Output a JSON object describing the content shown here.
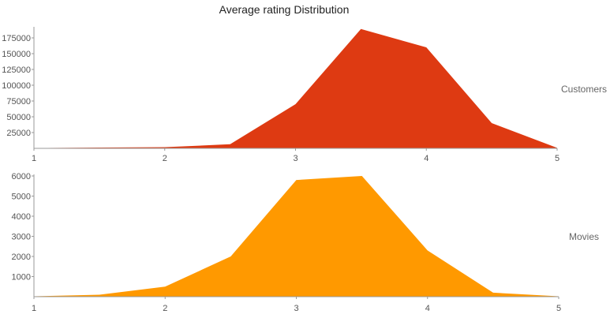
{
  "title": "Average rating Distribution",
  "chart_data": [
    {
      "type": "area",
      "name": "Customers",
      "color": "#de3a12",
      "x": [
        1,
        1.5,
        2,
        2.5,
        3,
        3.5,
        4,
        4.5,
        5
      ],
      "values": [
        400,
        1200,
        1800,
        6500,
        70000,
        189000,
        160000,
        40000,
        800
      ],
      "xlim": [
        1,
        5
      ],
      "ylim": [
        0,
        190000
      ],
      "xticks": [
        1,
        2,
        3,
        4,
        5
      ],
      "yticks": [
        25000,
        50000,
        75000,
        100000,
        125000,
        150000,
        175000
      ],
      "grid": false
    },
    {
      "type": "area",
      "name": "Movies",
      "color": "#ff9900",
      "x": [
        1,
        1.5,
        2,
        2.5,
        3,
        3.5,
        4,
        4.5,
        5
      ],
      "values": [
        20,
        100,
        500,
        2000,
        5800,
        6000,
        2300,
        200,
        20
      ],
      "xlim": [
        1,
        5
      ],
      "ylim": [
        0,
        6000
      ],
      "xticks": [
        1,
        2,
        3,
        4,
        5
      ],
      "yticks": [
        1000,
        2000,
        3000,
        4000,
        5000,
        6000
      ],
      "grid": false
    }
  ]
}
